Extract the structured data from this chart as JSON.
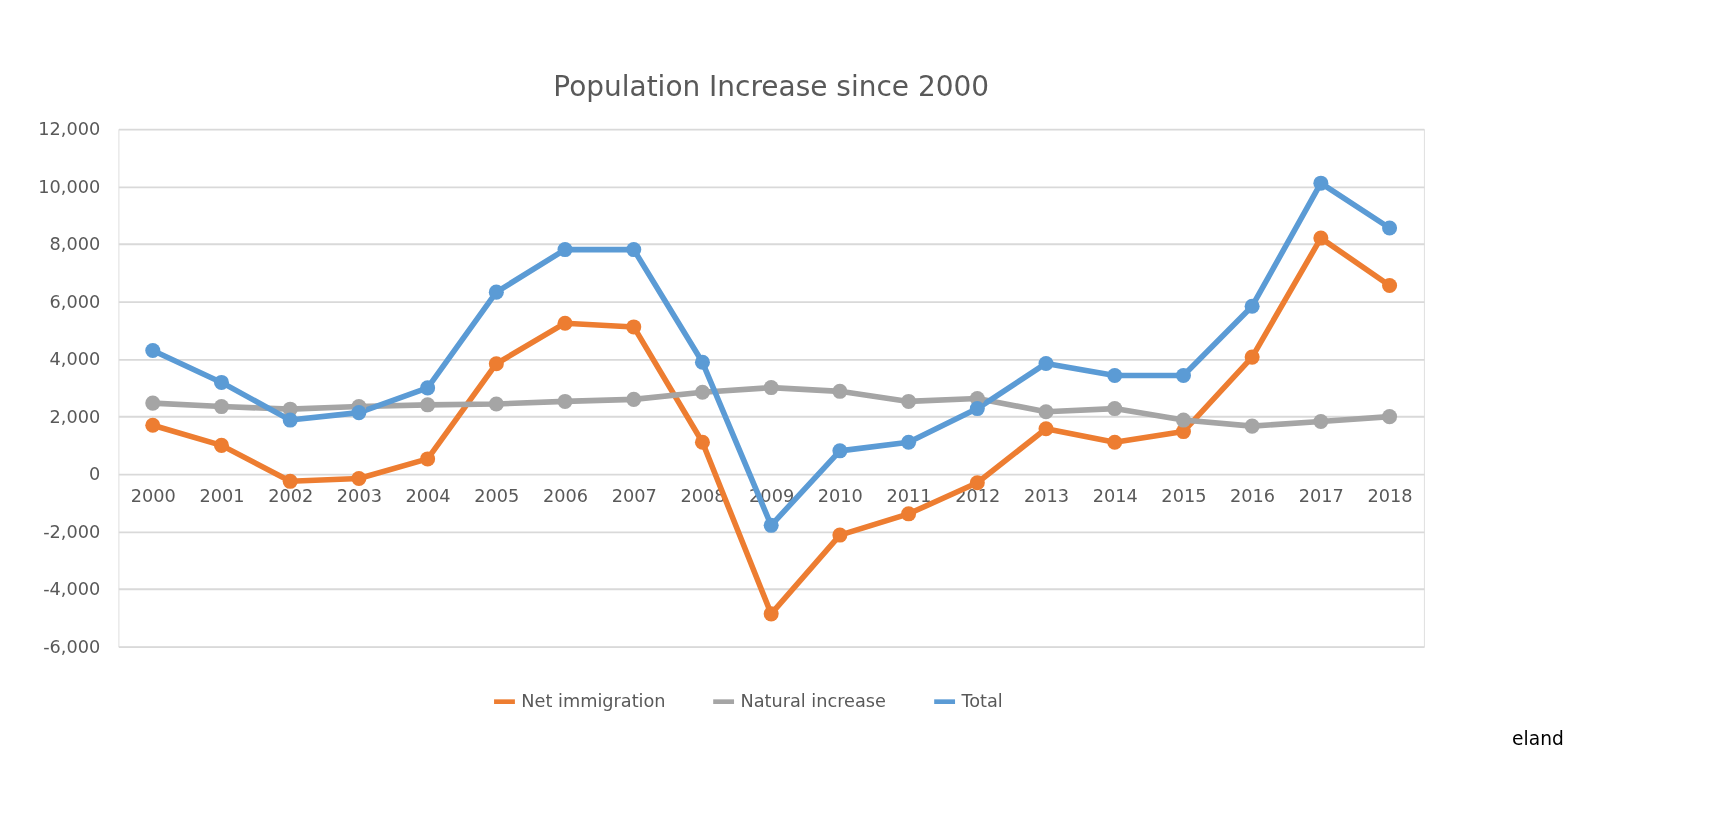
{
  "chart_data": {
    "type": "line",
    "title": "Population Increase since 2000",
    "categories": [
      "2000",
      "2001",
      "2002",
      "2003",
      "2004",
      "2005",
      "2006",
      "2007",
      "2008",
      "2009",
      "2010",
      "2011",
      "2012",
      "2013",
      "2014",
      "2015",
      "2016",
      "2017",
      "2018"
    ],
    "series": [
      {
        "name": "Net immigration",
        "color": "#ed7d31",
        "values": [
          1700,
          1000,
          -250,
          -150,
          530,
          3840,
          5250,
          5120,
          1110,
          -4860,
          -2120,
          -1380,
          -300,
          1580,
          1110,
          1480,
          4070,
          8210,
          6560
        ]
      },
      {
        "name": "Natural increase",
        "color": "#a5a5a5",
        "values": [
          2470,
          2350,
          2260,
          2350,
          2410,
          2440,
          2530,
          2600,
          2850,
          3010,
          2880,
          2530,
          2630,
          2170,
          2280,
          1880,
          1670,
          1830,
          2000
        ]
      },
      {
        "name": "Total",
        "color": "#5b9bd5",
        "values": [
          4300,
          3190,
          1880,
          2140,
          3000,
          6330,
          7810,
          7810,
          3890,
          -1780,
          810,
          1110,
          2280,
          3850,
          3430,
          3430,
          5840,
          10120,
          8560
        ]
      }
    ],
    "ylim": [
      -6000,
      12000
    ],
    "yticks": [
      {
        "value": -6000,
        "label": "-6,000"
      },
      {
        "value": -4000,
        "label": "-4,000"
      },
      {
        "value": -2000,
        "label": "-2,000"
      },
      0,
      {
        "value": 2000,
        "label": "2,000"
      },
      {
        "value": 4000,
        "label": "4,000"
      },
      {
        "value": 6000,
        "label": "6,000"
      },
      {
        "value": 8000,
        "label": "8,000"
      },
      {
        "value": 10000,
        "label": "10,000"
      },
      {
        "value": 12000,
        "label": "12,000"
      }
    ],
    "grid": "y",
    "legend": "bottom",
    "marker": "circle",
    "line_style": "solid",
    "annotations": [
      "eland"
    ]
  }
}
